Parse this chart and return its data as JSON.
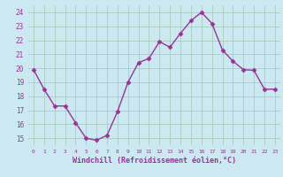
{
  "x": [
    0,
    1,
    2,
    3,
    4,
    5,
    6,
    7,
    8,
    9,
    10,
    11,
    12,
    13,
    14,
    15,
    16,
    17,
    18,
    19,
    20,
    21,
    22,
    23
  ],
  "y": [
    19.9,
    18.5,
    17.3,
    17.3,
    16.1,
    15.0,
    14.85,
    15.2,
    16.9,
    19.0,
    20.4,
    20.7,
    21.9,
    21.5,
    22.5,
    23.4,
    24.0,
    23.2,
    21.3,
    20.5,
    19.9,
    19.85,
    18.5,
    18.5
  ],
  "line_color": "#993399",
  "marker": "D",
  "marker_size": 2.5,
  "bg_color": "#cce8f0",
  "grid_color": "#aaccc0",
  "xlabel": "Windchill (Refroidissement éolien,°C)",
  "xlabel_color": "#993399",
  "ylabel_ticks": [
    15,
    16,
    17,
    18,
    19,
    20,
    21,
    22,
    23,
    24
  ],
  "xtick_labels": [
    "0",
    "1",
    "2",
    "3",
    "4",
    "5",
    "6",
    "7",
    "8",
    "9",
    "10",
    "11",
    "12",
    "13",
    "14",
    "15",
    "16",
    "17",
    "18",
    "19",
    "20",
    "21",
    "22",
    "23"
  ],
  "ylim": [
    14.5,
    24.5
  ],
  "xlim": [
    -0.5,
    23.5
  ]
}
